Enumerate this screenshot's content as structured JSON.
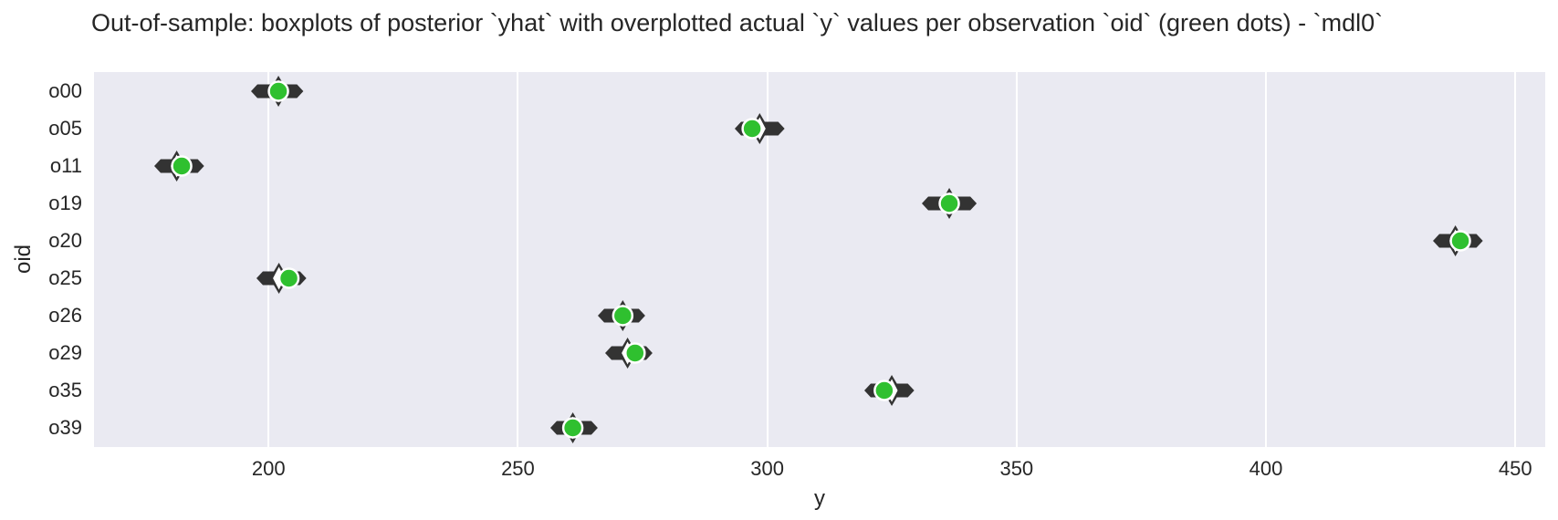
{
  "chart_data": {
    "type": "boxen-horizontal",
    "title": "Out-of-sample: boxplots of posterior `yhat` with overplotted actual `y` values per observation `oid` (green dots) - `mdl0`",
    "xlabel": "y",
    "ylabel": "oid",
    "xlim": [
      165,
      456
    ],
    "xticks": [
      200,
      250,
      300,
      350,
      400,
      450
    ],
    "grid": "vertical-only",
    "legend": "none",
    "categories": [
      "o00",
      "o05",
      "o11",
      "o19",
      "o20",
      "o25",
      "o26",
      "o29",
      "o35",
      "o39"
    ],
    "series": [
      {
        "oid": "o00",
        "yhat_low": 196.5,
        "yhat_median": 202.0,
        "yhat_high": 207.0,
        "y_actual": 202.0
      },
      {
        "oid": "o05",
        "yhat_low": 293.5,
        "yhat_median": 298.5,
        "yhat_high": 303.5,
        "y_actual": 297.0
      },
      {
        "oid": "o11",
        "yhat_low": 177.0,
        "yhat_median": 181.5,
        "yhat_high": 187.0,
        "y_actual": 182.5
      },
      {
        "oid": "o19",
        "yhat_low": 331.0,
        "yhat_median": 336.5,
        "yhat_high": 342.0,
        "y_actual": 336.5
      },
      {
        "oid": "o20",
        "yhat_low": 433.5,
        "yhat_median": 438.0,
        "yhat_high": 443.5,
        "y_actual": 439.0
      },
      {
        "oid": "o25",
        "yhat_low": 197.5,
        "yhat_median": 202.0,
        "yhat_high": 207.5,
        "y_actual": 204.0
      },
      {
        "oid": "o26",
        "yhat_low": 266.0,
        "yhat_median": 271.0,
        "yhat_high": 275.5,
        "y_actual": 271.0
      },
      {
        "oid": "o29",
        "yhat_low": 267.5,
        "yhat_median": 272.0,
        "yhat_high": 277.0,
        "y_actual": 273.5
      },
      {
        "oid": "o35",
        "yhat_low": 319.5,
        "yhat_median": 325.0,
        "yhat_high": 329.5,
        "y_actual": 323.5
      },
      {
        "oid": "o39",
        "yhat_low": 256.5,
        "yhat_median": 261.0,
        "yhat_high": 266.0,
        "y_actual": 261.0
      }
    ],
    "colors": {
      "plot_background": "#eaeaf2",
      "figure_background": "#ffffff",
      "gridline": "#ffffff",
      "boxen_dark": "#333333",
      "boxen_inner_fill": "#ffffff",
      "actual_dot_green": "#2fc02f",
      "dot_ring": "#ffffff",
      "text": "#262626"
    }
  }
}
